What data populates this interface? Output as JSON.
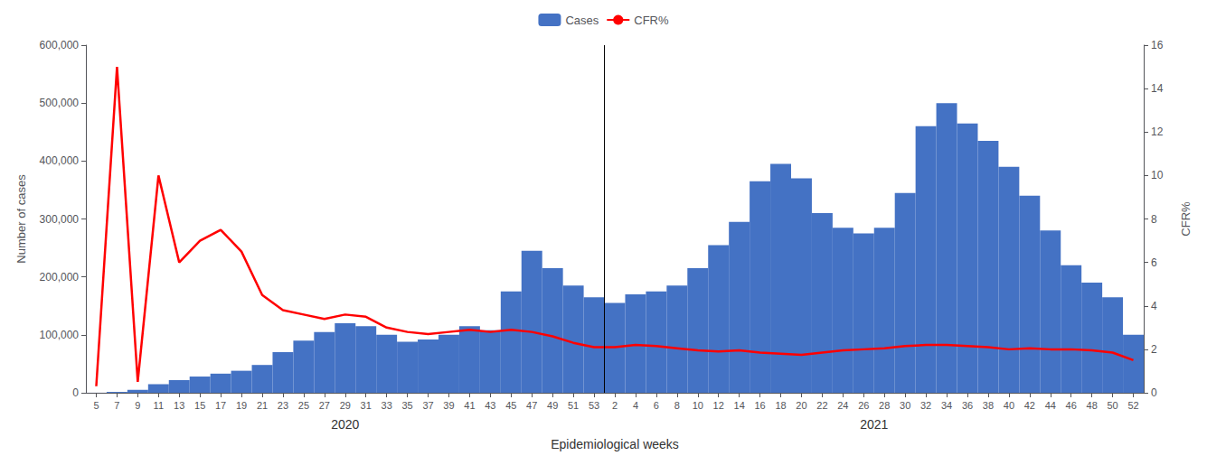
{
  "chart_data": {
    "type": "bar",
    "xlabel": "Epidemiological weeks",
    "ylabel": "Number of cases",
    "y2label": "CFR%",
    "categories": [
      "5",
      "7",
      "9",
      "11",
      "13",
      "15",
      "17",
      "19",
      "21",
      "23",
      "25",
      "27",
      "29",
      "31",
      "33",
      "35",
      "37",
      "39",
      "41",
      "43",
      "45",
      "47",
      "49",
      "51",
      "53",
      "2",
      "4",
      "6",
      "8",
      "10",
      "12",
      "14",
      "16",
      "18",
      "20",
      "22",
      "24",
      "26",
      "28",
      "30",
      "32",
      "34",
      "36",
      "38",
      "40",
      "42",
      "44",
      "46",
      "48",
      "50",
      "52"
    ],
    "series": [
      {
        "name": "Cases",
        "type": "bar",
        "color": "#4472C4",
        "values": [
          100,
          1500,
          5000,
          15000,
          22000,
          28000,
          33000,
          38000,
          48000,
          70000,
          90000,
          105000,
          120000,
          115000,
          100000,
          88000,
          92000,
          100000,
          115000,
          108000,
          175000,
          245000,
          215000,
          185000,
          165000,
          155000,
          170000,
          175000,
          185000,
          215000,
          255000,
          295000,
          365000,
          395000,
          370000,
          310000,
          285000,
          275000,
          285000,
          345000,
          460000,
          500000,
          465000,
          435000,
          390000,
          340000,
          280000,
          220000,
          190000,
          165000,
          100000
        ]
      },
      {
        "name": "CFR%",
        "type": "line",
        "color": "#FF0000",
        "axis": "y2",
        "values": [
          0.3,
          15.0,
          0.5,
          10.0,
          6.0,
          7.0,
          7.5,
          6.5,
          4.5,
          3.8,
          3.6,
          3.4,
          3.6,
          3.5,
          3.0,
          2.8,
          2.7,
          2.8,
          2.9,
          2.8,
          2.9,
          2.8,
          2.6,
          2.3,
          2.1,
          2.1,
          2.2,
          2.15,
          2.05,
          1.95,
          1.9,
          1.95,
          1.85,
          1.8,
          1.75,
          1.85,
          1.95,
          2.0,
          2.05,
          2.15,
          2.2,
          2.2,
          2.15,
          2.1,
          2.0,
          2.05,
          2.0,
          2.0,
          1.95,
          1.85,
          1.5
        ]
      }
    ],
    "ylim": [
      0,
      600000
    ],
    "yticks": [
      0,
      {
        "value": 100000,
        "label": "100,000"
      },
      {
        "value": 200000,
        "label": "200,000"
      },
      {
        "value": 300000,
        "label": "300,000"
      },
      {
        "value": 400000,
        "label": "400,000"
      },
      {
        "value": 500000,
        "label": "500,000"
      },
      {
        "value": 600000,
        "label": "600,000"
      }
    ],
    "y2lim": [
      0,
      16
    ],
    "y2ticks": [
      0,
      2,
      4,
      6,
      8,
      10,
      12,
      14,
      16
    ],
    "annotations": [
      {
        "text": "2020",
        "from": "5",
        "to": "53"
      },
      {
        "text": "2021",
        "from": "2",
        "to": "52"
      }
    ],
    "grid": false,
    "legend": "top"
  }
}
